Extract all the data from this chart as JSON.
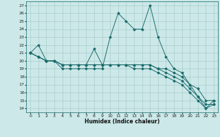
{
  "xlabel": "Humidex (Indice chaleur)",
  "ylabel": "",
  "bg_color": "#cce8e8",
  "grid_color": "#aacccc",
  "line_color": "#1a6b6b",
  "xlim": [
    -0.5,
    23.5
  ],
  "ylim": [
    13.5,
    27.5
  ],
  "xticks": [
    0,
    1,
    2,
    3,
    4,
    5,
    6,
    7,
    8,
    9,
    10,
    11,
    12,
    13,
    14,
    15,
    16,
    17,
    18,
    19,
    20,
    21,
    22,
    23
  ],
  "yticks": [
    14,
    15,
    16,
    17,
    18,
    19,
    20,
    21,
    22,
    23,
    24,
    25,
    26,
    27
  ],
  "lines": [
    {
      "x": [
        0,
        1,
        2,
        3,
        4,
        5,
        6,
        7,
        8,
        9,
        10,
        11,
        12,
        13,
        14,
        15,
        16,
        17,
        18,
        19,
        20,
        21,
        22,
        23
      ],
      "y": [
        21,
        22,
        20,
        20,
        19,
        19,
        19,
        19,
        19,
        19,
        23,
        26,
        25,
        24,
        24,
        27,
        23,
        20.5,
        19,
        18.5,
        17,
        15.5,
        14,
        15
      ]
    },
    {
      "x": [
        0,
        1,
        2,
        3,
        4,
        5,
        6,
        7,
        8,
        9,
        10,
        11,
        12,
        13,
        14,
        15,
        16,
        17,
        18,
        19,
        20,
        21,
        22,
        23
      ],
      "y": [
        21,
        20.5,
        20,
        20,
        19.5,
        19.5,
        19.5,
        19.5,
        21.5,
        19.5,
        19.5,
        19.5,
        19.5,
        19.5,
        19.5,
        19.5,
        19,
        19,
        18.5,
        18,
        17,
        16.5,
        15,
        15
      ]
    },
    {
      "x": [
        0,
        1,
        2,
        3,
        4,
        5,
        6,
        7,
        8,
        9,
        10,
        11,
        12,
        13,
        14,
        15,
        16,
        17,
        18,
        19,
        20,
        21,
        22,
        23
      ],
      "y": [
        21,
        20.5,
        20,
        20,
        19.5,
        19.5,
        19.5,
        19.5,
        19.5,
        19.5,
        19.5,
        19.5,
        19.5,
        19.5,
        19.5,
        19.5,
        19,
        18.5,
        18,
        17.5,
        16.5,
        15.5,
        14.5,
        14.5
      ]
    },
    {
      "x": [
        0,
        1,
        2,
        3,
        4,
        5,
        6,
        7,
        8,
        9,
        10,
        11,
        12,
        13,
        14,
        15,
        16,
        17,
        18,
        19,
        20,
        21,
        22,
        23
      ],
      "y": [
        21,
        20.5,
        20,
        20,
        19.5,
        19.5,
        19.5,
        19.5,
        19.5,
        19.5,
        19.5,
        19.5,
        19.5,
        19,
        19,
        19,
        18.5,
        18,
        17.5,
        17,
        16,
        15,
        14,
        14.5
      ]
    }
  ]
}
